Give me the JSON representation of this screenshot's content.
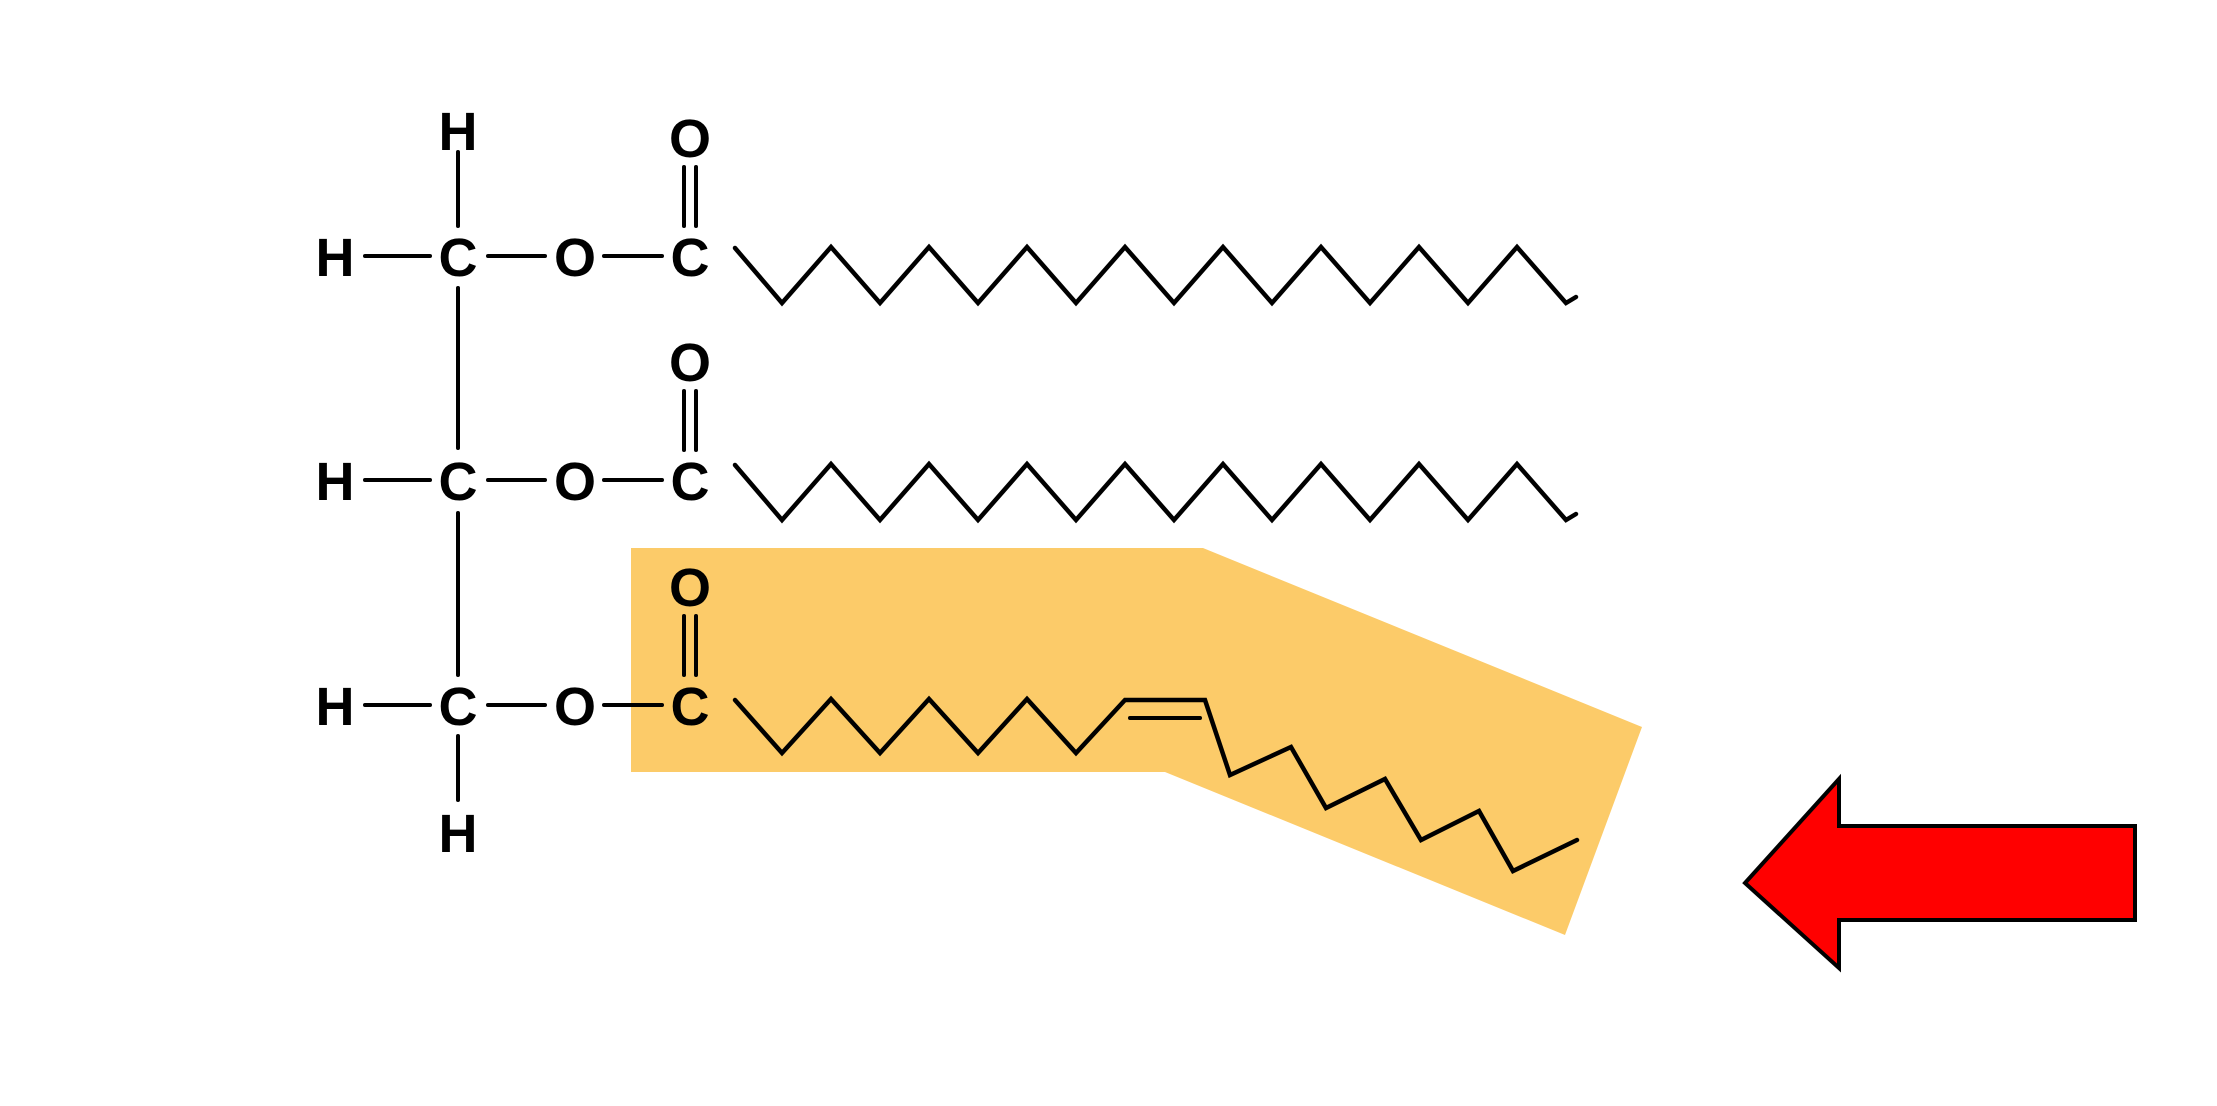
{
  "atoms": {
    "hydrogen": "H",
    "carbon": "C",
    "oxygen": "O"
  },
  "colors": {
    "highlight": "#FCCB69",
    "arrow_fill": "#FF0000",
    "arrow_outline": "#000000",
    "ink": "#000000",
    "background": "#FFFFFF"
  },
  "molecule": {
    "glycerol_backbone_carbons": 3,
    "fatty_acids": [
      {
        "chain": "saturated"
      },
      {
        "chain": "saturated"
      },
      {
        "chain": "unsaturated",
        "double_bonds": 1,
        "highlighted": true
      }
    ]
  },
  "icons": [
    "left-arrow-icon"
  ]
}
